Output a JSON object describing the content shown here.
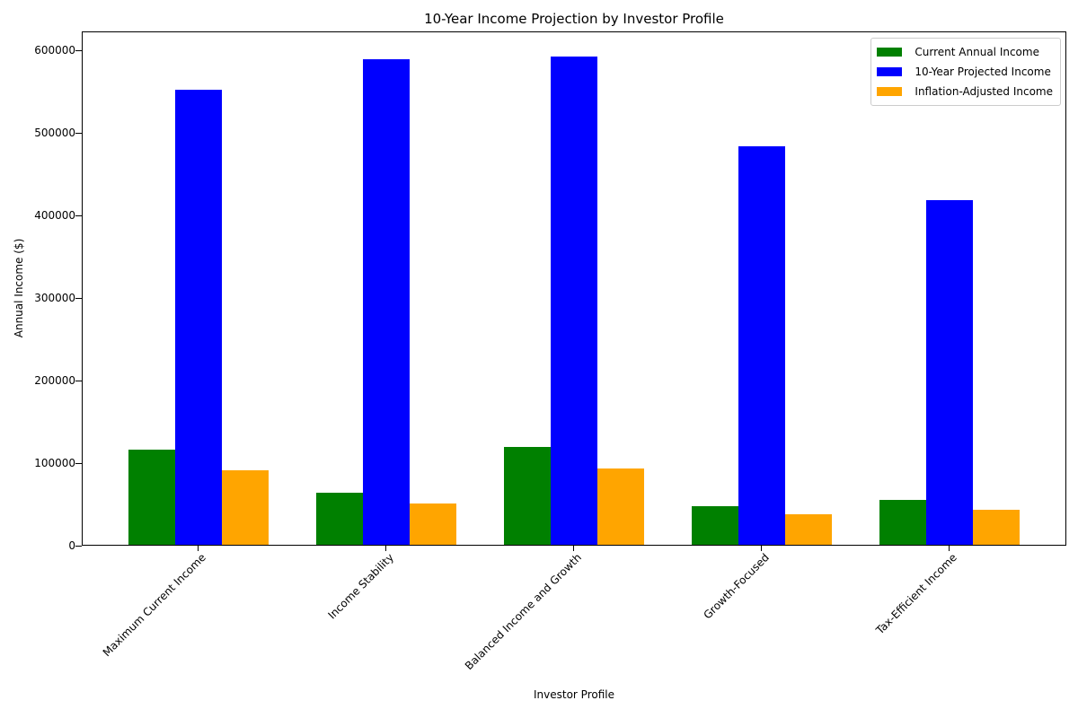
{
  "chart_data": {
    "type": "bar",
    "title": "10-Year Income Projection by Investor Profile",
    "xlabel": "Investor Profile",
    "ylabel": "Annual Income ($)",
    "categories": [
      "Maximum Current Income",
      "Income Stability",
      "Balanced Income and Growth",
      "Growth-Focused",
      "Tax-Efficient Income"
    ],
    "series": [
      {
        "name": "Current Annual Income",
        "color": "#008000",
        "values": [
          115000,
          63000,
          118000,
          47000,
          54000
        ]
      },
      {
        "name": "10-Year Projected Income",
        "color": "#0000ff",
        "values": [
          551000,
          588000,
          592000,
          483000,
          417000
        ]
      },
      {
        "name": "Inflation-Adjusted Income",
        "color": "#ffa500",
        "values": [
          90000,
          50000,
          92000,
          37000,
          42000
        ]
      }
    ],
    "yticks": [
      "0",
      "100000",
      "200000",
      "300000",
      "400000",
      "500000",
      "600000"
    ],
    "ylim": [
      0,
      623000
    ],
    "grid": false,
    "legend_position": "upper right"
  }
}
